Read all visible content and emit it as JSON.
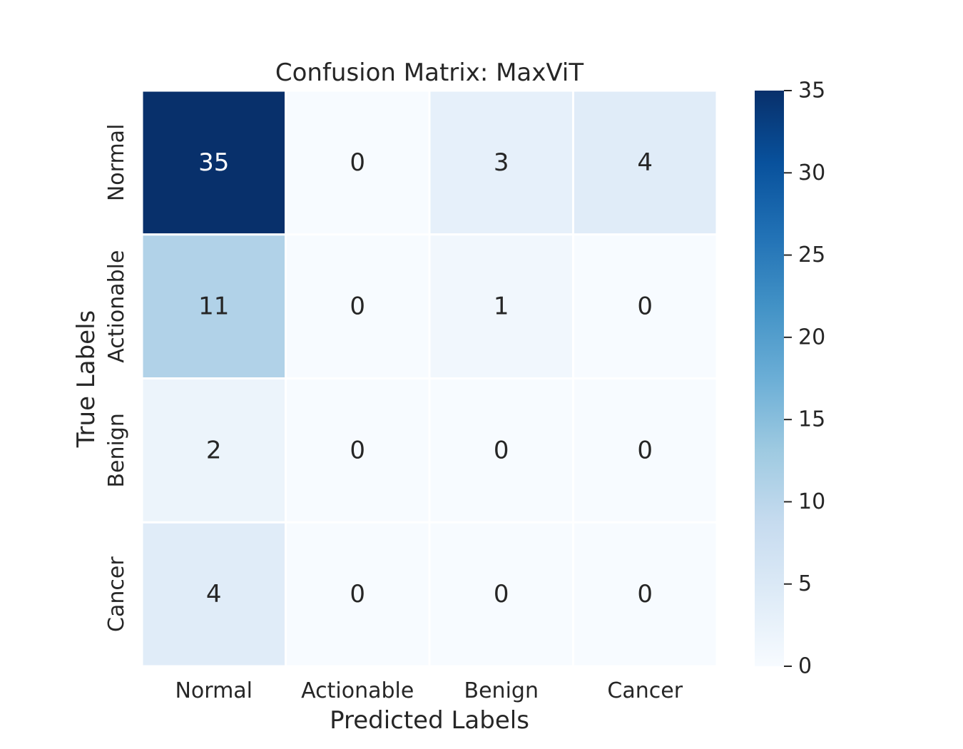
{
  "chart_data": {
    "type": "heatmap",
    "title": "Confusion Matrix: MaxViT",
    "xlabel": "Predicted Labels",
    "ylabel": "True Labels",
    "x_categories": [
      "Normal",
      "Actionable",
      "Benign",
      "Cancer"
    ],
    "y_categories": [
      "Normal",
      "Actionable",
      "Benign",
      "Cancer"
    ],
    "values": [
      [
        35,
        0,
        3,
        4
      ],
      [
        11,
        0,
        1,
        0
      ],
      [
        2,
        0,
        0,
        0
      ],
      [
        4,
        0,
        0,
        0
      ]
    ],
    "colorbar": {
      "min": 0,
      "max": 35,
      "ticks": [
        0,
        5,
        10,
        15,
        20,
        25,
        30,
        35
      ]
    },
    "colormap": "Blues",
    "colors": {
      "low": "#f7fbff",
      "high": "#08306b",
      "text_dark": "#262626",
      "text_light": "#ffffff",
      "grid": "#ffffff"
    }
  }
}
